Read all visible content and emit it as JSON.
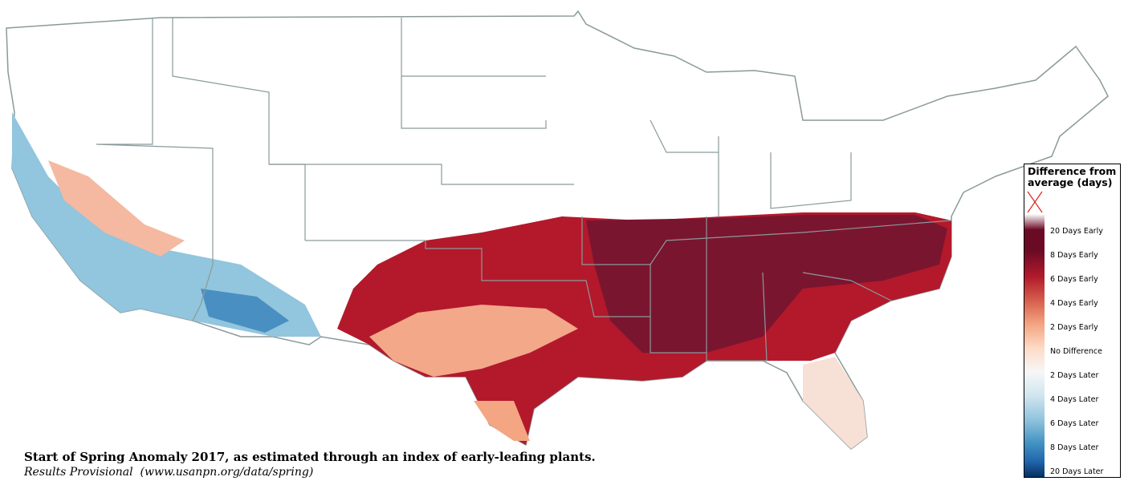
{
  "caption": {
    "title": "Start of Spring Anomaly 2017, as estimated through an index of early-leafing plants.",
    "subtitle": "Results Provisional  (www.usanpn.org/data/spring)"
  },
  "legend": {
    "title": "Difference from average (days)",
    "labels": [
      "20 Days Early",
      "8 Days Early",
      "6 Days Early",
      "4 Days Early",
      "2 Days Early",
      "No Difference",
      "2 Days Later",
      "4 Days Later",
      "6 Days Later",
      "8 Days Later",
      "20 Days Later"
    ]
  }
}
